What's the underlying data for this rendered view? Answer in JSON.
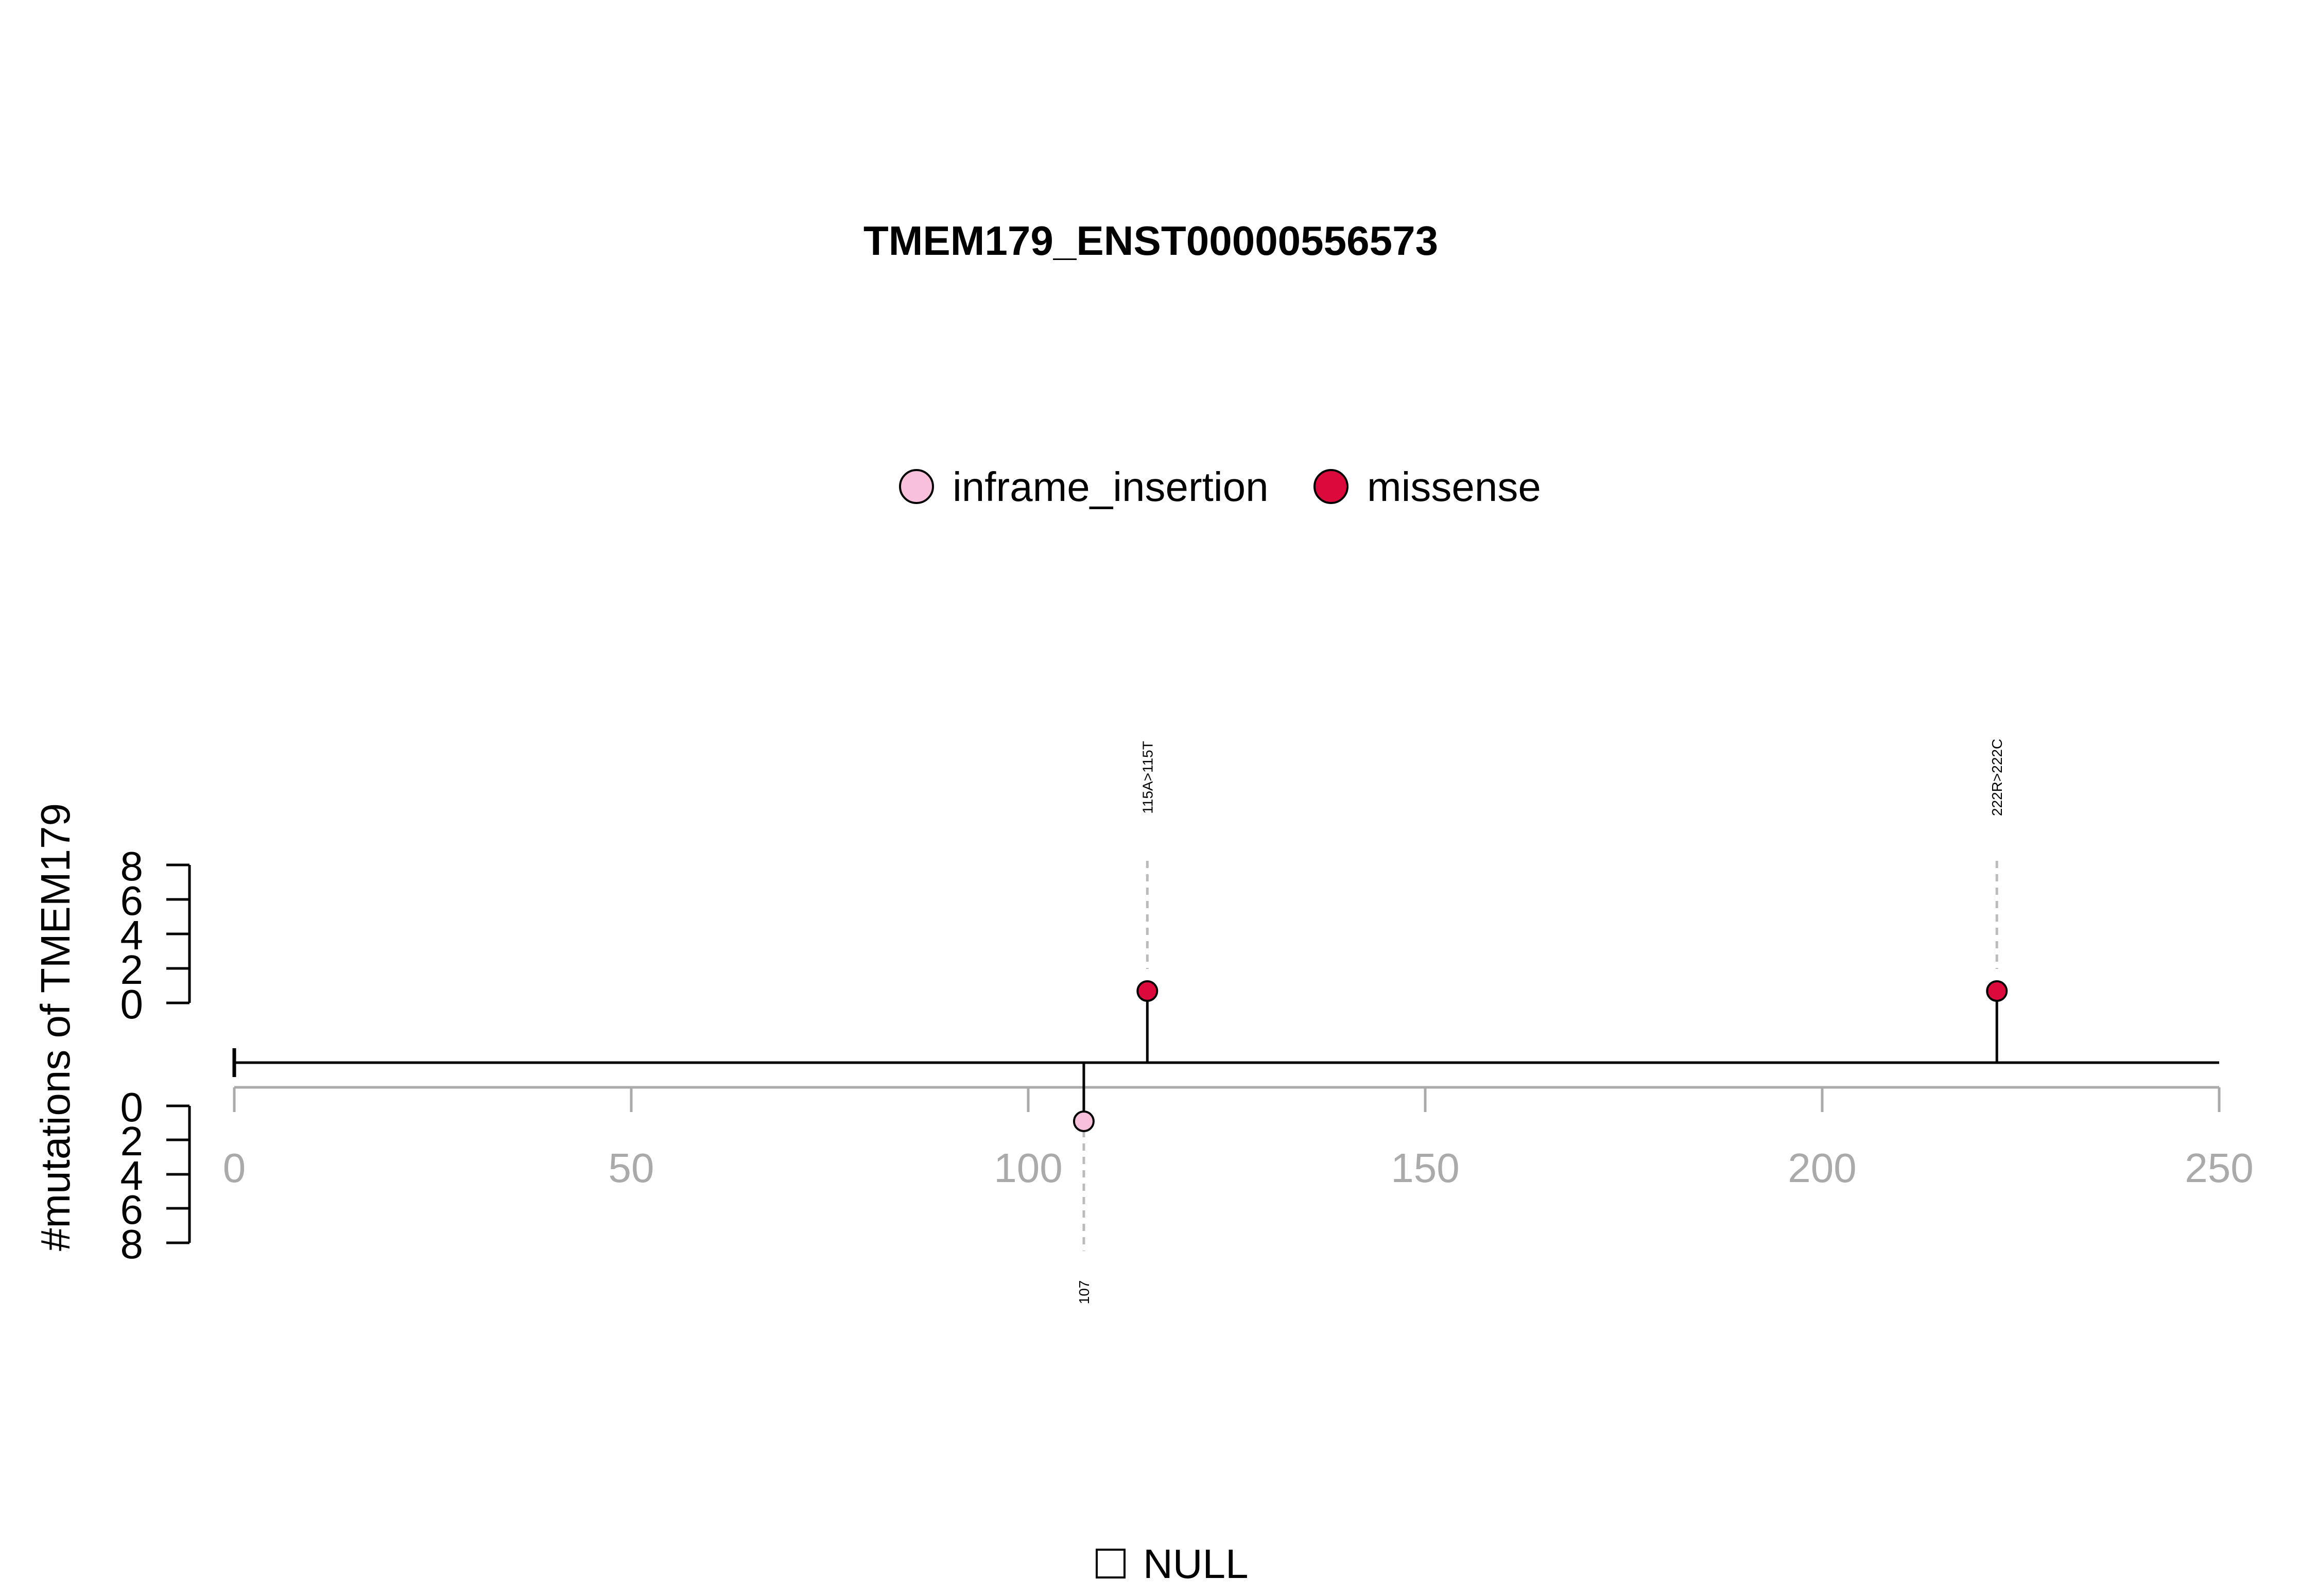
{
  "chart_data": {
    "type": "lollipop",
    "title": "TMEM179_ENST00000556573",
    "ylabel": "#mutations of TMEM179",
    "xlim": [
      0,
      250
    ],
    "x_ticks": [
      "0",
      "50",
      "100",
      "150",
      "200",
      "250"
    ],
    "y_ticks_top": [
      "0",
      "2",
      "4",
      "6",
      "8"
    ],
    "y_ticks_bottom": [
      "0",
      "2",
      "4",
      "6",
      "8"
    ],
    "ylim": [
      0,
      8
    ],
    "legend": [
      {
        "name": "inframe_insertion",
        "color": "#f9c0dc"
      },
      {
        "name": "missense",
        "color": "#dc0a3c"
      }
    ],
    "domain_legend": [
      {
        "name": "NULL"
      }
    ],
    "mutations": [
      {
        "position": 115,
        "count": 1,
        "label": "115A>115T",
        "type": "missense",
        "side": "top"
      },
      {
        "position": 222,
        "count": 1,
        "label": "222R>222C",
        "type": "missense",
        "side": "top"
      },
      {
        "position": 107,
        "count": 1,
        "label": "107",
        "type": "inframe_insertion",
        "side": "bottom"
      }
    ]
  }
}
